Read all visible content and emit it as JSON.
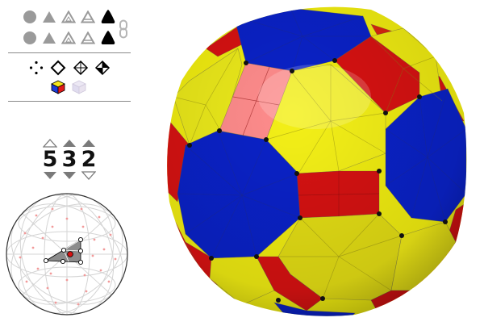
{
  "toolbar": {
    "row1": [
      "sphere-icon",
      "triangle-solid-icon",
      "triangle-outline-icon",
      "triangle-half-icon",
      "triangle-bold-icon"
    ],
    "row2": [
      "sphere-icon",
      "triangle-solid-icon",
      "triangle-outline-icon",
      "triangle-half-icon",
      "triangle-bold-icon"
    ],
    "link_icon": "chain-link-icon",
    "modes": [
      "vertex-dots-icon",
      "diamond-outline-icon",
      "diamond-cross-icon",
      "diamond-split-icon"
    ],
    "color_modes": [
      "color-cube-icon",
      "faded-cube-icon"
    ]
  },
  "symmetry": {
    "p": "5",
    "q": "3",
    "r": "2"
  },
  "colors": {
    "pentagon_blue": "#0a22c8",
    "hexagon_yellow": "#f2ee10",
    "square_red": "#d81212",
    "highlight_pink": "#ff8c8c",
    "ui_gray": "#9a9a9a"
  }
}
